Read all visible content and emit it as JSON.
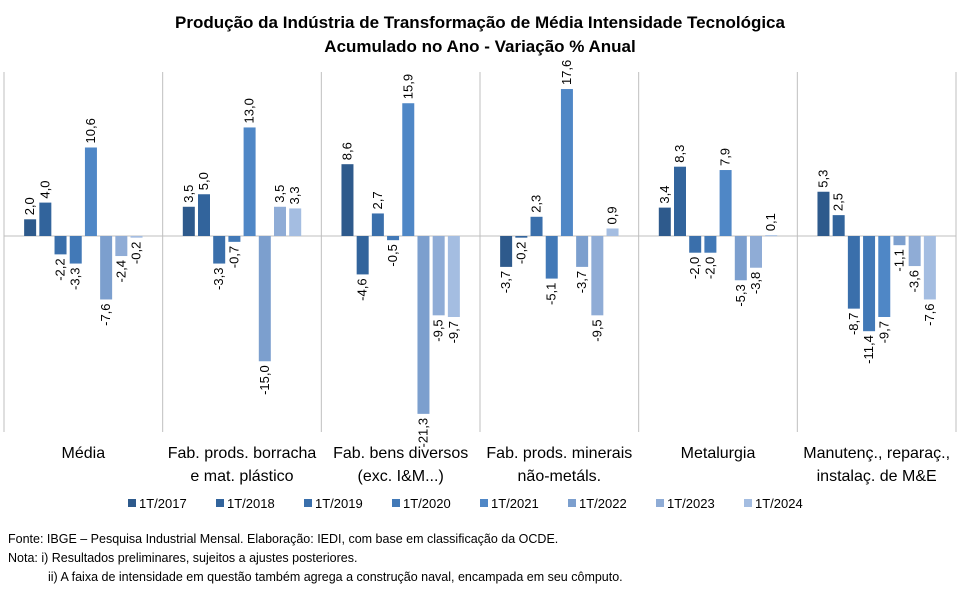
{
  "chart_data": {
    "type": "bar",
    "title": [
      "Produção da Indústria de Transformação de Média Intensidade Tecnológica",
      "Acumulado no Ano - Variação % Anual"
    ],
    "categories": [
      [
        "Média"
      ],
      [
        "Fab. prods. borracha",
        "e mat. plástico"
      ],
      [
        "Fab. bens diversos",
        "(exc. I&M...)"
      ],
      [
        "Fab. prods. minerais",
        "não-metáls."
      ],
      [
        "Metalurgia"
      ],
      [
        "Manutenç., reparaç.,",
        "instalaç. de M&E"
      ]
    ],
    "series": [
      {
        "name": "1T/2017",
        "color": "#2e5a8c",
        "values": [
          2.0,
          3.5,
          8.6,
          -3.7,
          3.4,
          5.3
        ]
      },
      {
        "name": "1T/2018",
        "color": "#32649c",
        "values": [
          4.0,
          5.0,
          -4.6,
          -0.2,
          8.3,
          2.5
        ]
      },
      {
        "name": "1T/2019",
        "color": "#3a6fab",
        "values": [
          -2.2,
          -3.3,
          2.7,
          2.3,
          -2.0,
          -8.7
        ]
      },
      {
        "name": "1T/2020",
        "color": "#4279b7",
        "values": [
          -3.3,
          -0.7,
          -0.5,
          -5.1,
          -2.0,
          -11.4
        ]
      },
      {
        "name": "1T/2021",
        "color": "#4f87c6",
        "values": [
          10.6,
          13.0,
          15.9,
          17.6,
          7.9,
          -9.7
        ]
      },
      {
        "name": "1T/2022",
        "color": "#7c9fce",
        "values": [
          -7.6,
          -15.0,
          -21.3,
          -3.7,
          -5.3,
          -1.1
        ]
      },
      {
        "name": "1T/2023",
        "color": "#8facd6",
        "values": [
          -2.4,
          3.5,
          -9.5,
          -9.5,
          -3.8,
          -3.6
        ]
      },
      {
        "name": "1T/2024",
        "color": "#a4bde1",
        "values": [
          -0.2,
          3.3,
          -9.7,
          0.9,
          0.1,
          -7.6
        ]
      }
    ],
    "value_labels": [
      [
        "2,0",
        "3,5",
        "8,6",
        "-3,7",
        "3,4",
        "5,3"
      ],
      [
        "4,0",
        "5,0",
        "-4,6",
        "-0,2",
        "8,3",
        "2,5"
      ],
      [
        "-2,2",
        "-3,3",
        "2,7",
        "2,3",
        "-2,0",
        "-8,7"
      ],
      [
        "-3,3",
        "-0,7",
        "-0,5",
        "-5,1",
        "-2,0",
        "-11,4"
      ],
      [
        "10,6",
        "13,0",
        "15,9",
        "17,6",
        "7,9",
        "-9,7"
      ],
      [
        "-7,6",
        "-15,0",
        "-21,3",
        "-3,7",
        "-5,3",
        "-1,1"
      ],
      [
        "-2,4",
        "3,5",
        "-9,5",
        "-9,5",
        "-3,8",
        "-3,6"
      ],
      [
        "-0,2",
        "3,3",
        "-9,7",
        "0,9",
        "0,1",
        "-7,6"
      ]
    ],
    "ylim": [
      -24,
      20
    ],
    "grid": false,
    "legend_position": "bottom"
  },
  "notes": {
    "source": "Fonte: IBGE – Pesquisa Industrial Mensal. Elaboração: IEDI, com base em classificação da OCDE.",
    "note1": "Nota: i) Resultados preliminares, sujeitos a ajustes posteriores.",
    "note2": "ii) A faixa de intensidade em questão também  agrega a construção naval, encampada em seu cômputo."
  }
}
